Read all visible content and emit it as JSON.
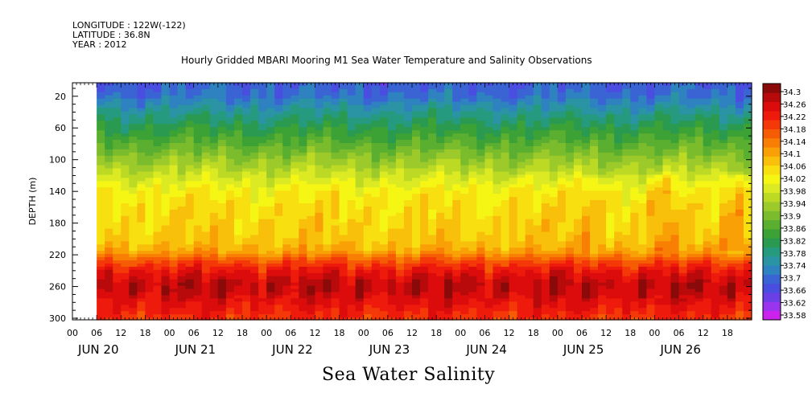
{
  "header": {
    "longitude": "LONGITUDE : 122W(-122)",
    "latitude": "LATITUDE : 36.8N",
    "year": "YEAR : 2012"
  },
  "colors": {
    "ramp": [
      "#cc22ee",
      "#9a34ee",
      "#6a40e6",
      "#4a4ee0",
      "#3a64d4",
      "#2e82c0",
      "#2a94a4",
      "#269a7e",
      "#2a9a50",
      "#3ca236",
      "#5aae30",
      "#7abc2c",
      "#9cca2a",
      "#bcda24",
      "#dcea24",
      "#f6f614",
      "#f8e010",
      "#f8c00a",
      "#f8a006",
      "#f87e04",
      "#f65c04",
      "#f43808",
      "#ee1a0c",
      "#dc0c0c",
      "#b80a0a",
      "#8a0a0a"
    ]
  },
  "chart_data": {
    "type": "heatmap",
    "title": "Hourly Gridded MBARI Mooring M1 Sea Water Temperature and Salinity Observations",
    "caption": "Sea Water Salinity",
    "ylabel": "DEPTH (m)",
    "xlabel": "",
    "y_ticks": [
      20,
      60,
      100,
      140,
      180,
      220,
      260,
      300
    ],
    "ylim": [
      3,
      302
    ],
    "y_inverted": true,
    "x_hour_ticks": [
      "00",
      "06",
      "12",
      "18",
      "00",
      "06",
      "12",
      "18",
      "00",
      "06",
      "12",
      "18",
      "00",
      "06",
      "12",
      "18",
      "00",
      "06",
      "12",
      "18",
      "00",
      "06",
      "12",
      "18",
      "00",
      "06",
      "12",
      "18"
    ],
    "x_day_labels": [
      "JUN 20",
      "JUN 21",
      "JUN 22",
      "JUN 23",
      "JUN 24",
      "JUN 25",
      "JUN 26"
    ],
    "xlim_hours": [
      0,
      168
    ],
    "data_start_hour": 6,
    "colorbar_levels": [
      "34.3",
      "34.26",
      "34.22",
      "34.18",
      "34.14",
      "34.1",
      "34.06",
      "34.02",
      "33.98",
      "33.94",
      "33.9",
      "33.86",
      "33.82",
      "33.78",
      "33.74",
      "33.7",
      "33.66",
      "33.62",
      "33.58"
    ],
    "colorbar_range": [
      33.58,
      34.32
    ],
    "depth_profile": {
      "depth": [
        3,
        20,
        40,
        60,
        80,
        100,
        120,
        140,
        160,
        180,
        200,
        215,
        225,
        240,
        255,
        265,
        280,
        300
      ],
      "salinity": [
        33.7,
        33.72,
        33.78,
        33.83,
        33.88,
        33.93,
        33.98,
        34.03,
        34.05,
        34.06,
        34.07,
        34.1,
        34.16,
        34.23,
        34.27,
        34.27,
        34.24,
        34.2
      ]
    }
  }
}
